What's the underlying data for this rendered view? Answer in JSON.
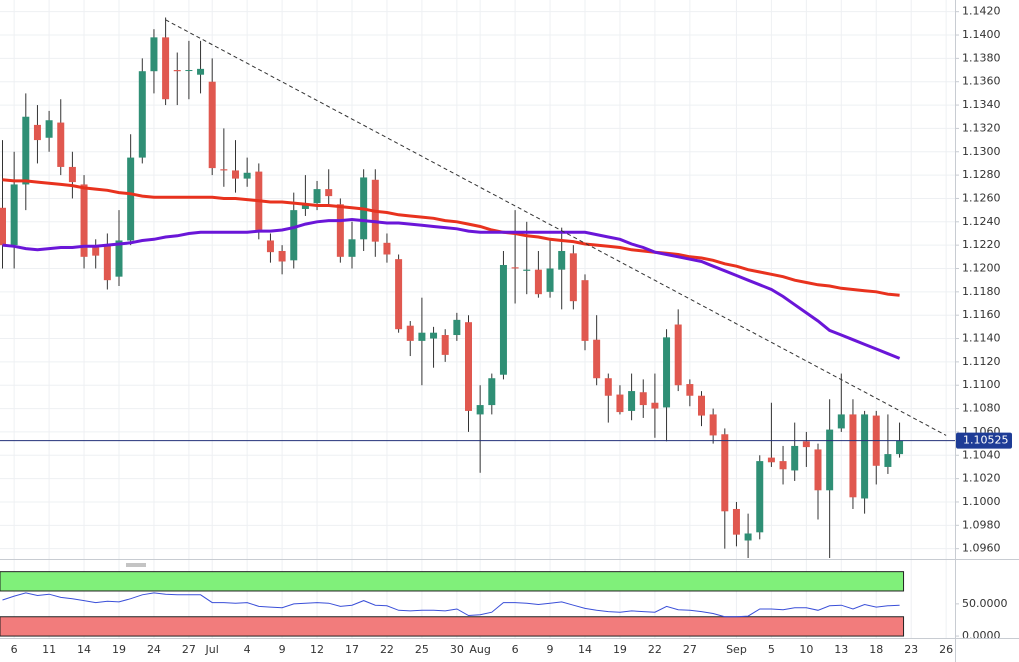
{
  "chart_data": [
    {
      "type": "candlestick",
      "categories": [
        null,
        "6",
        null,
        null,
        "11",
        null,
        null,
        "14",
        null,
        null,
        "19",
        null,
        null,
        "24",
        null,
        null,
        "27",
        null,
        "Jul",
        null,
        null,
        "4",
        null,
        null,
        "9",
        null,
        null,
        "12",
        null,
        null,
        "17",
        null,
        null,
        "22",
        null,
        null,
        "25",
        null,
        null,
        "30",
        null,
        "Aug",
        null,
        null,
        "6",
        null,
        null,
        "9",
        null,
        null,
        "14",
        null,
        null,
        "19",
        null,
        null,
        "22",
        null,
        null,
        "27",
        null,
        null,
        null,
        "Sep",
        null,
        null,
        "5",
        null,
        null,
        "10",
        null,
        null,
        "13",
        null,
        null,
        "18",
        null,
        null,
        "23",
        null,
        null,
        "26"
      ],
      "open": [
        1.1252,
        1.122,
        1.1272,
        1.1323,
        1.1312,
        1.1325,
        1.1287,
        1.1272,
        1.1218,
        1.122,
        1.1193,
        1.1224,
        1.1295,
        1.1369,
        1.1398,
        1.137,
        1.137,
        1.1366,
        1.136,
        1.1285,
        1.1284,
        1.1277,
        1.1283,
        1.1224,
        1.1215,
        1.1207,
        1.1251,
        1.1256,
        1.1268,
        1.1255,
        1.121,
        1.1225,
        1.1276,
        1.1222,
        1.1208,
        1.1151,
        1.1138,
        1.114,
        1.1143,
        1.1143,
        1.1154,
        1.1075,
        1.1083,
        1.1109,
        1.1201,
        1.1198,
        1.1199,
        1.118,
        1.1199,
        1.1213,
        1.119,
        1.1139,
        1.1106,
        1.1092,
        1.1078,
        1.1094,
        1.1085,
        1.1081,
        1.1152,
        1.1101,
        1.1091,
        1.1075,
        1.1058,
        1.0994,
        1.0967,
        1.0974,
        1.1038,
        1.1035,
        1.1027,
        1.1052,
        1.1045,
        1.101,
        1.1063,
        1.1075,
        1.1003,
        1.1074,
        1.103,
        1.1041,
        null,
        null,
        null,
        null
      ],
      "high": [
        1.131,
        1.13,
        1.135,
        1.134,
        1.1335,
        1.1345,
        1.13,
        1.128,
        1.1225,
        1.123,
        1.125,
        1.1315,
        1.138,
        1.1405,
        1.1415,
        1.1385,
        1.1395,
        1.1395,
        1.138,
        1.132,
        1.131,
        1.1295,
        1.129,
        1.123,
        1.122,
        1.1265,
        1.128,
        1.1275,
        1.1285,
        1.126,
        1.124,
        1.1285,
        1.1285,
        1.123,
        1.1212,
        1.1155,
        1.1175,
        1.115,
        1.1148,
        1.1162,
        1.116,
        1.11,
        1.111,
        1.1215,
        1.125,
        1.124,
        1.1215,
        1.1225,
        1.1235,
        1.122,
        1.1195,
        1.116,
        1.111,
        1.11,
        1.111,
        1.1105,
        1.111,
        1.1148,
        1.1165,
        1.1105,
        1.1095,
        1.108,
        1.1063,
        1.1,
        1.099,
        1.104,
        1.1085,
        1.1048,
        1.1068,
        1.106,
        1.105,
        1.1088,
        1.111,
        1.1088,
        1.1078,
        1.1078,
        1.1075,
        1.1068,
        null,
        null,
        null,
        null
      ],
      "low": [
        1.12,
        1.12,
        1.125,
        1.129,
        1.13,
        1.128,
        1.126,
        1.12,
        1.12,
        1.1182,
        1.1185,
        1.122,
        1.129,
        1.135,
        1.134,
        1.134,
        1.1345,
        1.135,
        1.128,
        1.127,
        1.1265,
        1.127,
        1.1225,
        1.1205,
        1.1195,
        1.12,
        1.1245,
        1.125,
        1.1255,
        1.1205,
        1.12,
        1.1215,
        1.121,
        1.1205,
        1.1145,
        1.1125,
        1.11,
        1.1115,
        1.112,
        1.1138,
        1.106,
        1.1025,
        1.1075,
        1.1105,
        1.117,
        1.1178,
        1.1175,
        1.1175,
        1.1165,
        1.1165,
        1.113,
        1.11,
        1.1068,
        1.1075,
        1.107,
        1.1072,
        1.1055,
        1.1052,
        1.1095,
        1.1082,
        1.1065,
        1.105,
        1.096,
        1.0962,
        1.0952,
        1.0968,
        1.103,
        1.1015,
        1.1018,
        1.103,
        1.0985,
        1.0952,
        1.106,
        1.0994,
        1.099,
        1.1015,
        1.1024,
        1.1038,
        null,
        null,
        null,
        null
      ],
      "close": [
        1.122,
        1.1272,
        1.133,
        1.131,
        1.1327,
        1.1287,
        1.1274,
        1.121,
        1.1211,
        1.119,
        1.1224,
        1.1295,
        1.1369,
        1.1398,
        1.1345,
        1.1369,
        1.137,
        1.1371,
        1.1286,
        1.1284,
        1.1277,
        1.1282,
        1.1233,
        1.1214,
        1.1206,
        1.125,
        1.1255,
        1.1268,
        1.1262,
        1.121,
        1.1225,
        1.1278,
        1.1223,
        1.1212,
        1.1148,
        1.1138,
        1.1145,
        1.1145,
        1.1126,
        1.1156,
        1.1078,
        1.1083,
        1.1106,
        1.1203,
        1.12,
        1.1199,
        1.1178,
        1.12,
        1.1215,
        1.1172,
        1.1138,
        1.1106,
        1.1091,
        1.1077,
        1.1095,
        1.1083,
        1.108,
        1.1141,
        1.11,
        1.1091,
        1.1074,
        1.1057,
        1.0992,
        1.0972,
        1.0973,
        1.1035,
        1.1034,
        1.1028,
        1.1048,
        1.1047,
        1.101,
        1.1062,
        1.1075,
        1.1004,
        1.1075,
        1.1031,
        1.1041,
        1.10525,
        null,
        null,
        null,
        null
      ],
      "up_color": "#2f8f75",
      "down_color": "#e0584f",
      "lines": [
        {
          "color": "#e8321e",
          "values": [
            1.1276,
            1.1275,
            1.1275,
            1.1274,
            1.1273,
            1.1272,
            1.1271,
            1.1269,
            1.1268,
            1.1267,
            1.1265,
            1.1264,
            1.1262,
            1.1261,
            1.1261,
            1.1261,
            1.1261,
            1.1261,
            1.1261,
            1.126,
            1.126,
            1.1259,
            1.1258,
            1.1257,
            1.1257,
            1.1256,
            1.1255,
            1.1254,
            1.1254,
            1.1253,
            1.1252,
            1.1251,
            1.1249,
            1.1248,
            1.1246,
            1.1245,
            1.1244,
            1.1243,
            1.1241,
            1.124,
            1.1238,
            1.1236,
            1.1233,
            1.1231,
            1.123,
            1.1228,
            1.1227,
            1.1225,
            1.1224,
            1.1223,
            1.1221,
            1.122,
            1.1219,
            1.1218,
            1.1216,
            1.1215,
            1.1214,
            1.1213,
            1.1212,
            1.121,
            1.1209,
            1.1207,
            1.1204,
            1.1202,
            1.1199,
            1.1197,
            1.1195,
            1.1193,
            1.119,
            1.1188,
            1.1186,
            1.1185,
            1.1183,
            1.1182,
            1.1181,
            1.118,
            1.1178,
            1.1177,
            null,
            null,
            null,
            null
          ]
        },
        {
          "color": "#6a16d8",
          "values": [
            1.122,
            1.1219,
            1.1217,
            1.1216,
            1.1217,
            1.1218,
            1.1218,
            1.1219,
            1.1219,
            1.122,
            1.1221,
            1.1222,
            1.1224,
            1.1225,
            1.1227,
            1.1228,
            1.123,
            1.1231,
            1.1231,
            1.1231,
            1.1231,
            1.1231,
            1.1232,
            1.1232,
            1.1233,
            1.1235,
            1.1238,
            1.124,
            1.1241,
            1.1241,
            1.1242,
            1.1241,
            1.124,
            1.1239,
            1.1239,
            1.1238,
            1.1237,
            1.1236,
            1.1235,
            1.1234,
            1.1232,
            1.1231,
            1.1231,
            1.1231,
            1.1231,
            1.1231,
            1.1231,
            1.1231,
            1.1231,
            1.1231,
            1.1231,
            1.1229,
            1.1227,
            1.1225,
            1.1221,
            1.1218,
            1.1214,
            1.1212,
            1.121,
            1.1208,
            1.1206,
            1.1202,
            1.1198,
            1.1194,
            1.119,
            1.1186,
            1.1182,
            1.1176,
            1.1169,
            1.1162,
            1.1155,
            1.1147,
            1.1143,
            1.1139,
            1.1135,
            1.1131,
            1.1127,
            1.1123,
            null,
            null,
            null,
            null
          ]
        }
      ],
      "trendline": {
        "x": [
          14,
          81
        ],
        "y": [
          1.1413,
          1.1057
        ]
      },
      "last_price": 1.10525,
      "ylim": [
        1.0952,
        1.143
      ],
      "yticks": [
        {
          "value": 1.096,
          "label": "1.0960"
        },
        {
          "value": 1.098,
          "label": "1.0980"
        },
        {
          "value": 1.1,
          "label": "1.1000"
        },
        {
          "value": 1.102,
          "label": "1.1020"
        },
        {
          "value": 1.104,
          "label": "1.1040"
        },
        {
          "value": 1.106,
          "label": "1.1060"
        },
        {
          "value": 1.108,
          "label": "1.1080"
        },
        {
          "value": 1.11,
          "label": "1.1100"
        },
        {
          "value": 1.112,
          "label": "1.1120"
        },
        {
          "value": 1.114,
          "label": "1.1140"
        },
        {
          "value": 1.116,
          "label": "1.1160"
        },
        {
          "value": 1.118,
          "label": "1.1180"
        },
        {
          "value": 1.12,
          "label": "1.1200"
        },
        {
          "value": 1.122,
          "label": "1.1220"
        },
        {
          "value": 1.124,
          "label": "1.1240"
        },
        {
          "value": 1.126,
          "label": "1.1260"
        },
        {
          "value": 1.128,
          "label": "1.1280"
        },
        {
          "value": 1.13,
          "label": "1.1300"
        },
        {
          "value": 1.132,
          "label": "1.1320"
        },
        {
          "value": 1.134,
          "label": "1.1340"
        },
        {
          "value": 1.136,
          "label": "1.1360"
        },
        {
          "value": 1.138,
          "label": "1.1380"
        },
        {
          "value": 1.14,
          "label": "1.1400"
        },
        {
          "value": 1.142,
          "label": "1.1420"
        }
      ],
      "grid": true
    },
    {
      "type": "line",
      "values": [
        56,
        62,
        67,
        63,
        65,
        60,
        58,
        55,
        52,
        54,
        53,
        58,
        64,
        67,
        65,
        64,
        64,
        64,
        52,
        52,
        51,
        52,
        46,
        45,
        44,
        50,
        51,
        52,
        51,
        46,
        48,
        55,
        48,
        47,
        40,
        39,
        40,
        40,
        39,
        42,
        32,
        33,
        37,
        52,
        52,
        51,
        49,
        51,
        53,
        48,
        43,
        40,
        38,
        37,
        39,
        38,
        37,
        46,
        41,
        40,
        38,
        35,
        30,
        30,
        31,
        42,
        42,
        41,
        44,
        44,
        40,
        47,
        48,
        42,
        49,
        45,
        47,
        48,
        null,
        null,
        null,
        null
      ],
      "color": "#3a4fd8",
      "bands": [
        {
          "from": 70,
          "to": 100,
          "color": "#80f07a"
        },
        {
          "from": 0,
          "to": 30,
          "color": "#f27c7c"
        }
      ],
      "ylim": [
        -3,
        115
      ],
      "yticks": [
        {
          "value": 50,
          "label": "50.0000"
        },
        {
          "value": 0,
          "label": "0.0000"
        }
      ]
    }
  ]
}
